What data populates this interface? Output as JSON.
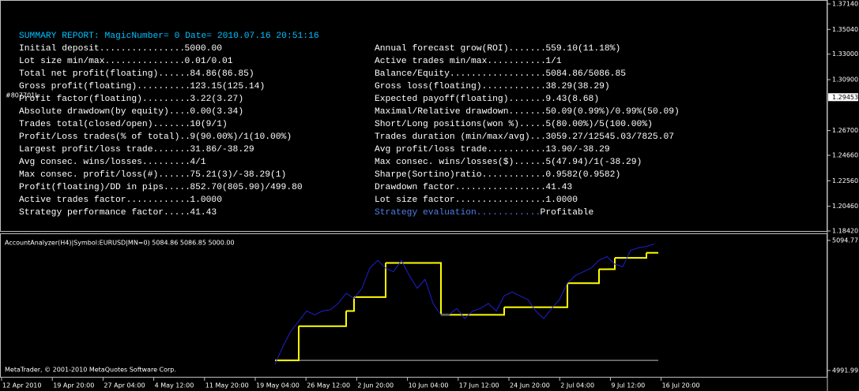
{
  "report": {
    "title": "SUMMARY REPORT: MagicNumber= 0 Date= 2010.07.16 20:51:16",
    "left": [
      {
        "label": "Initial deposit................",
        "value": "5000.00"
      },
      {
        "label": "Lot size min/max...............",
        "value": "0.01/0.01"
      },
      {
        "label": "Total net profit(floating)......",
        "value": "84.86(86.85)"
      },
      {
        "label": "Gross profit(floating)..........",
        "value": "123.15(125.14)"
      },
      {
        "label": "Profit factor(floating).........",
        "value": "3.22(3.27)"
      },
      {
        "label": "Absolute drawdown(by equity)....",
        "value": "0.00(3.34)"
      },
      {
        "label": "Trades total(closed/open).......",
        "value": "10(9/1)"
      },
      {
        "label": "Profit/Loss trades(% of total)..",
        "value": "9(90.00%)/1(10.00%)"
      },
      {
        "label": "Largest profit/loss trade.......",
        "value": "31.86/-38.29"
      },
      {
        "label": "Avg consec. wins/losses.........",
        "value": "4/1"
      },
      {
        "label": "Max consec. profit/loss(#)......",
        "value": "75.21(3)/-38.29(1)"
      },
      {
        "label": "Profit(floating)/DD in pips.....",
        "value": "852.70(805.90)/499.80"
      },
      {
        "label": "Active trades factor............",
        "value": "1.0000"
      },
      {
        "label": "Strategy performance factor.....",
        "value": "41.43"
      }
    ],
    "right": [
      {
        "label": "Annual forecast grow(ROI).......",
        "value": "559.10(11.18%)"
      },
      {
        "label": "Active trades min/max...........",
        "value": "1/1"
      },
      {
        "label": "Balance/Equity..................",
        "value": "5084.86/5086.85"
      },
      {
        "label": "Gross loss(floating)............",
        "value": "38.29(38.29)"
      },
      {
        "label": "Expected payoff(floating).......",
        "value": "9.43(8.68)"
      },
      {
        "label": "Maximal/Relative drawdown.......",
        "value": "50.09(0.99%)/0.99%(50.09)"
      },
      {
        "label": "Short/Long positions(won %).....",
        "value": "5(80.00%)/5(100.00%)"
      },
      {
        "label": "Trades duration (min/max/avg)...",
        "value": "3059.27/12545.03/7825.07"
      },
      {
        "label": "Avg profit/loss trade...........",
        "value": "13.90/-38.29"
      },
      {
        "label": "Max consec. wins/losses($)......",
        "value": "5(47.94)/1(-38.29)"
      },
      {
        "label": "Sharpe(Sortino)ratio............",
        "value": "0.9582(0.9582)"
      },
      {
        "label": "Drawdown factor.................",
        "value": "41.43"
      },
      {
        "label": "Lot size factor.................",
        "value": "1.0000"
      },
      {
        "label": "Strategy evaluation............",
        "value": "Profitable"
      }
    ]
  },
  "overlay_label": "#807701L",
  "price_axis": {
    "ticks": [
      {
        "value": 1.3714,
        "label": "1.37140"
      },
      {
        "value": 1.3504,
        "label": "1.35040"
      },
      {
        "value": 1.33,
        "label": "1.33000"
      },
      {
        "value": 1.309,
        "label": "1.30900"
      },
      {
        "value": 1.267,
        "label": "1.26700"
      },
      {
        "value": 1.2466,
        "label": "1.24660"
      },
      {
        "value": 1.2256,
        "label": "1.22560"
      },
      {
        "value": 1.2046,
        "label": "1.20460"
      },
      {
        "value": 1.1842,
        "label": "1.18420"
      }
    ],
    "current": 1.29453
  },
  "chart_data": {
    "type": "line",
    "title": "AccountAnalyzer(H4)|Symbol:EURUSD|MN=0) 5084.86 5086.85 5000.00",
    "ylim": [
      4991.99,
      5094.77
    ],
    "yticks": [
      5094.77,
      4991.99
    ],
    "series": [
      {
        "name": "Balance",
        "color": "#ffff00",
        "step": true,
        "values": [
          5000,
          5000,
          5000,
          5027,
          5027,
          5027,
          5027,
          5027,
          5027,
          5039,
          5050,
          5050,
          5050,
          5050,
          5077,
          5077,
          5077,
          5077,
          5077,
          5077,
          5077,
          5036,
          5036,
          5036,
          5036,
          5036,
          5036,
          5036,
          5036,
          5042,
          5042,
          5042,
          5042,
          5042,
          5042,
          5042,
          5042,
          5061,
          5061,
          5061,
          5061,
          5072,
          5072,
          5081,
          5081,
          5081,
          5081,
          5085,
          5085
        ]
      },
      {
        "name": "Equity",
        "color": "#1f1fd0",
        "values": [
          4997,
          5011,
          5023,
          5031,
          5039,
          5036,
          5039,
          5040,
          5045,
          5053,
          5049,
          5057,
          5073,
          5079,
          5073,
          5070,
          5079,
          5067,
          5057,
          5064,
          5045,
          5036,
          5036,
          5041,
          5033,
          5039,
          5041,
          5045,
          5039,
          5051,
          5054,
          5051,
          5048,
          5039,
          5033,
          5041,
          5048,
          5061,
          5067,
          5070,
          5073,
          5079,
          5082,
          5076,
          5074,
          5087,
          5089,
          5090,
          5092
        ]
      }
    ],
    "x_labels": [
      "12 Apr 2010",
      "19 Apr 20:00",
      "27 Apr 04:00",
      "4 May 12:00",
      "11 May 20:00",
      "19 May 04:00",
      "26 May 12:00",
      "2 Jun 20:00",
      "10 Jun 04:00",
      "17 Jun 12:00",
      "24 Jun 20:00",
      "2 Jul 04:00",
      "9 Jul 12:00",
      "16 Jul 20:00"
    ]
  },
  "footer": "MetaTrader, © 2001-2010 MetaQuotes Software Corp."
}
